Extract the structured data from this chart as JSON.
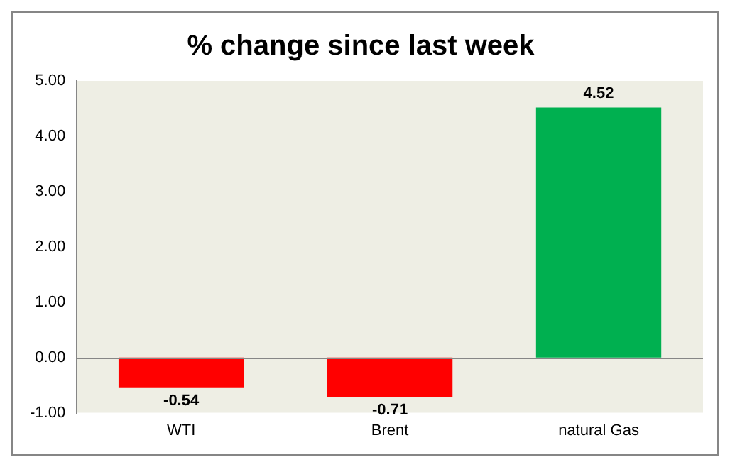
{
  "chart_data": {
    "type": "bar",
    "title": "% change since last week",
    "categories": [
      "WTI",
      "Brent",
      "natural Gas"
    ],
    "values": [
      -0.54,
      -0.71,
      4.52
    ],
    "colors": [
      "#ff0000",
      "#ff0000",
      "#00b050"
    ],
    "ylim": [
      -1,
      5
    ],
    "yticks": [
      {
        "value": -1,
        "label": "-1.00"
      },
      {
        "value": 0,
        "label": "0.00"
      },
      {
        "value": 1,
        "label": "1.00"
      },
      {
        "value": 2,
        "label": "2.00"
      },
      {
        "value": 3,
        "label": "3.00"
      },
      {
        "value": 4,
        "label": "4.00"
      },
      {
        "value": 5,
        "label": "5.00"
      }
    ],
    "ref_lines": [
      {
        "axis": "y",
        "value": 0,
        "color": "#868686"
      }
    ],
    "data_labels": true,
    "grid": false,
    "legend": false
  }
}
